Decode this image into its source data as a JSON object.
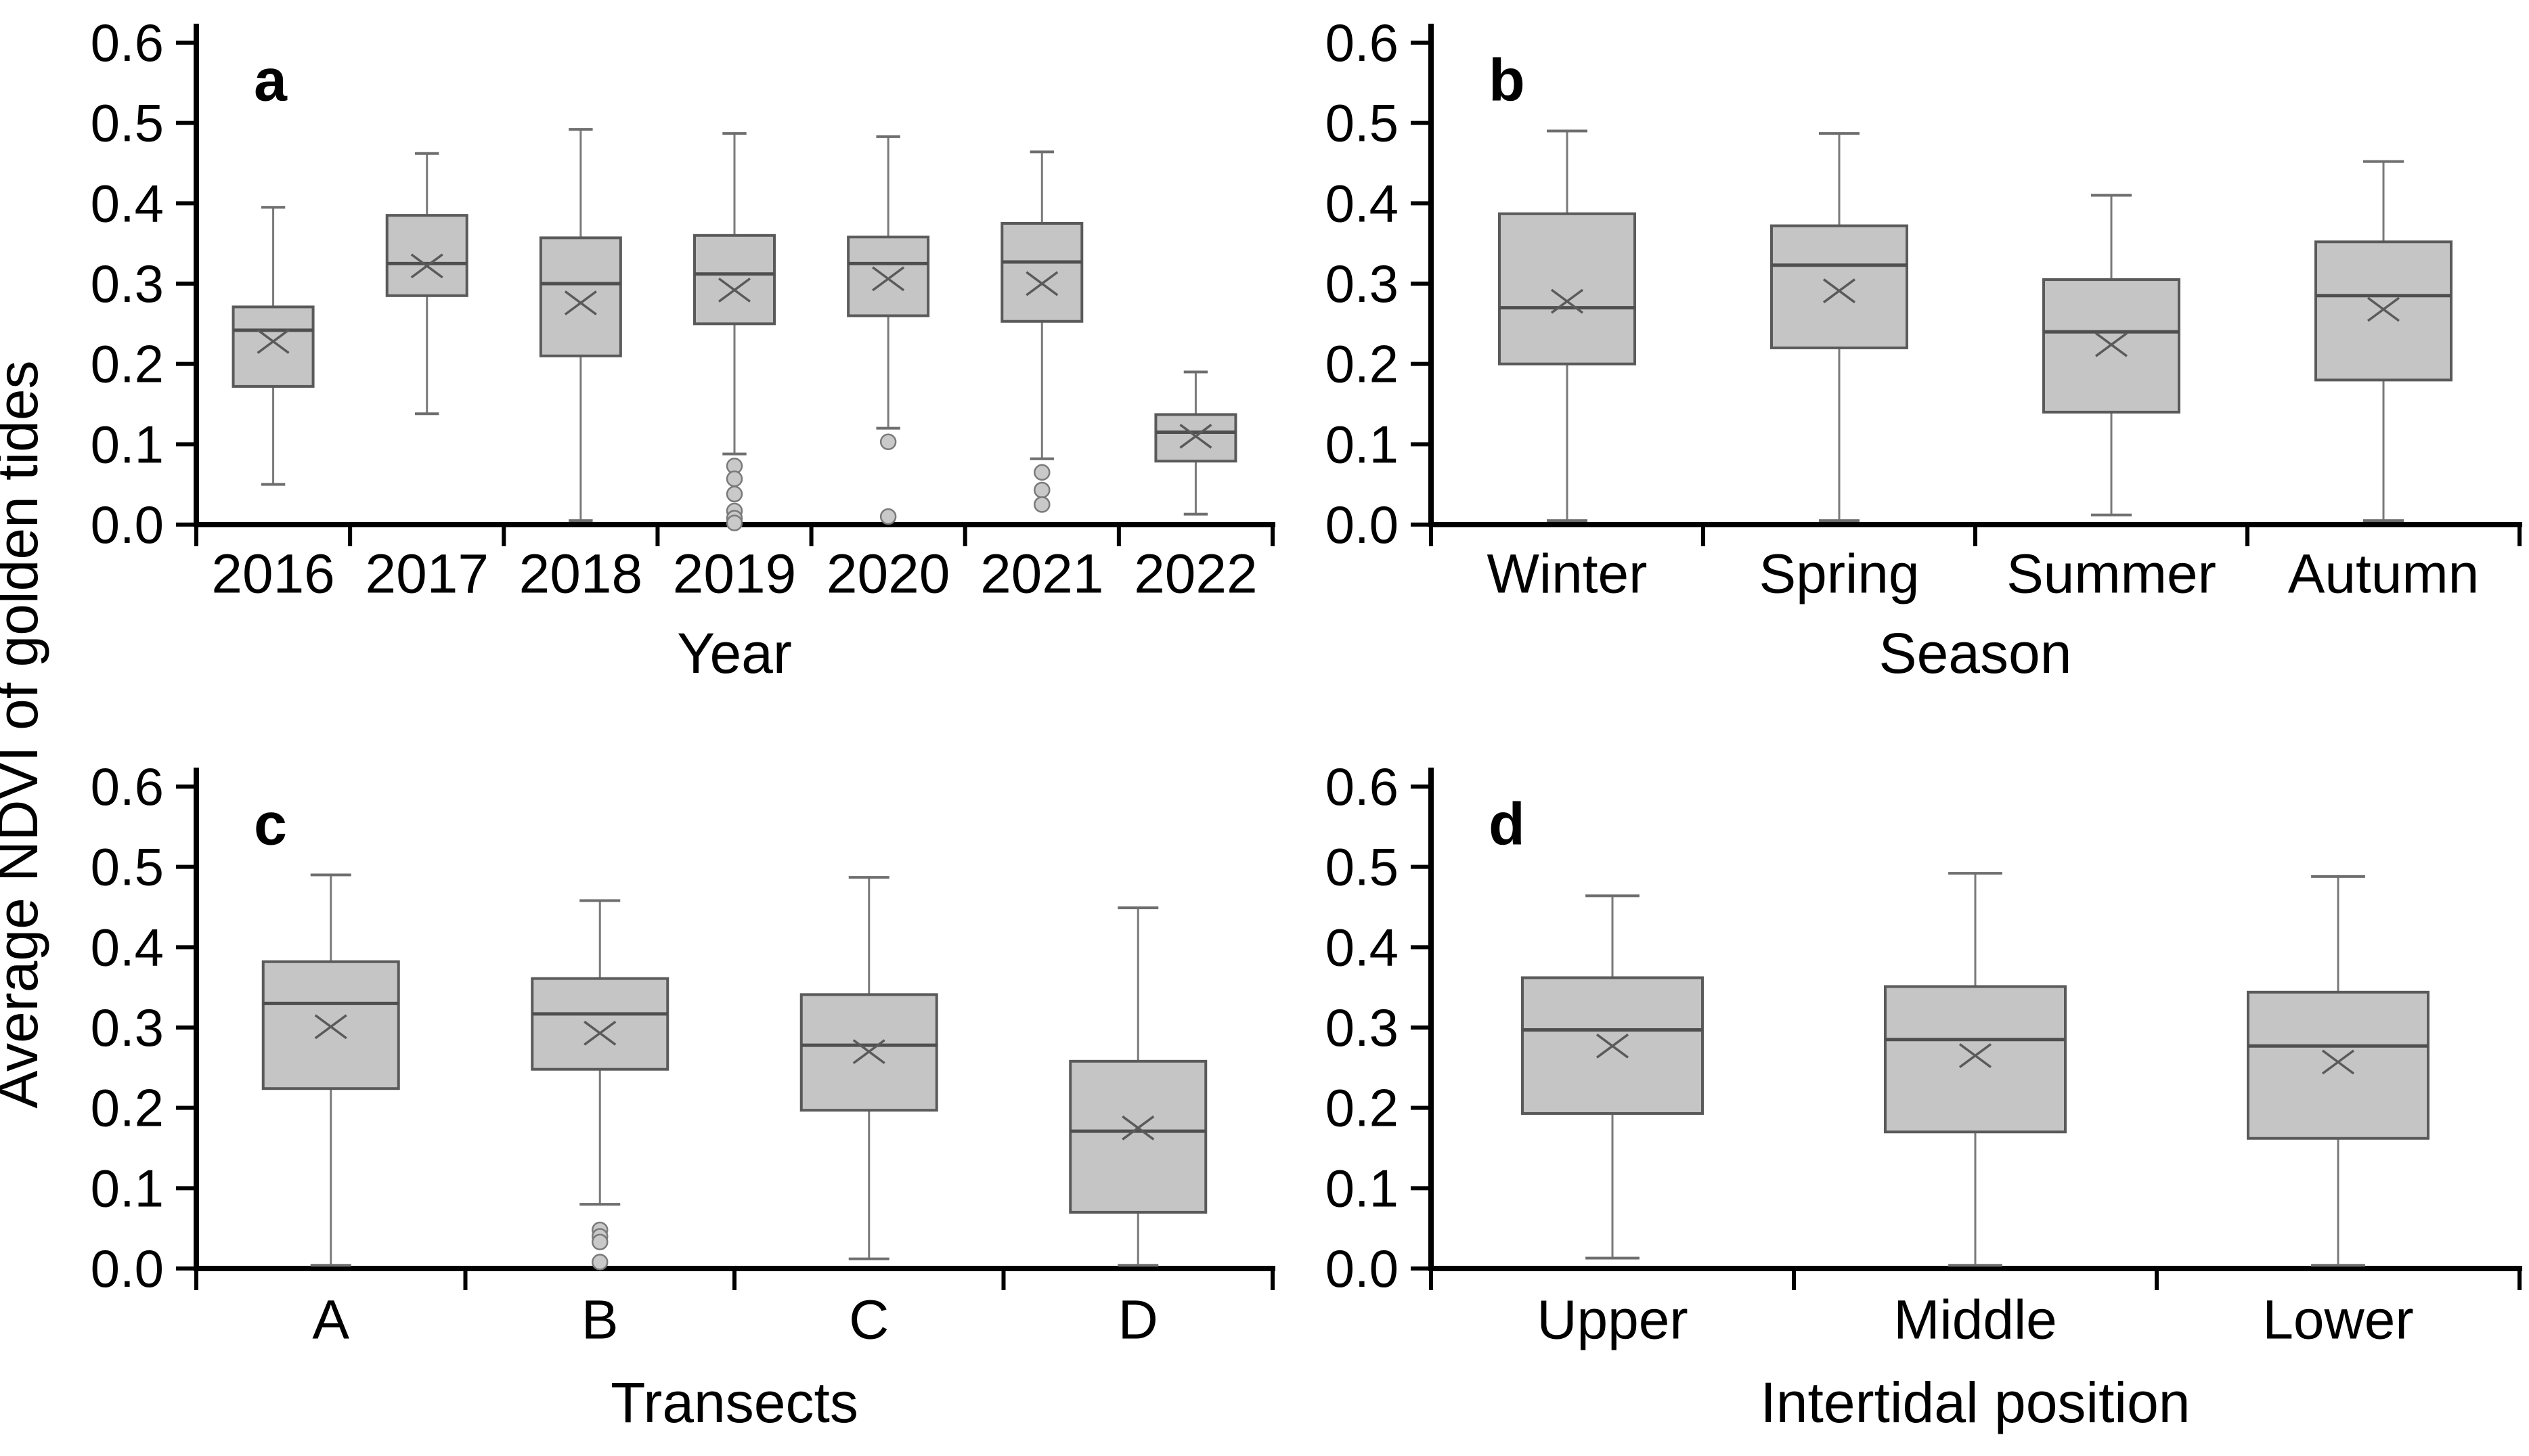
{
  "figure": {
    "ylabel": "Average NDVI of golden tides",
    "y_ticks": [
      "0.0",
      "0.1",
      "0.2",
      "0.3",
      "0.4",
      "0.5",
      "0.6"
    ],
    "ymin": 0.0,
    "ymax": 0.6
  },
  "colors": {
    "box_fill": "#c5c5c5",
    "box_border": "#5a5a5a",
    "median_line": "#4f4f4f",
    "whisker": "#7a7a7a",
    "cap": "#6e6e6e",
    "mean_marker": "#5a5a5a",
    "outlier_fill": "#c9c9c9",
    "outlier_border": "#7a7a7a",
    "axis": "#000000",
    "text": "#000000"
  },
  "chart_data": [
    {
      "type": "box",
      "panel_label": "a",
      "xlabel": "Year",
      "ylabel": "Average NDVI of golden tides",
      "ylim": [
        0.0,
        0.6
      ],
      "categories": [
        "2016",
        "2017",
        "2018",
        "2019",
        "2020",
        "2021",
        "2022"
      ],
      "boxes": [
        {
          "category": "2016",
          "whisker_low": 0.05,
          "q1": 0.172,
          "median": 0.242,
          "q3": 0.271,
          "whisker_high": 0.395,
          "mean": 0.228,
          "outliers": []
        },
        {
          "category": "2017",
          "whisker_low": 0.138,
          "q1": 0.285,
          "median": 0.325,
          "q3": 0.385,
          "whisker_high": 0.462,
          "mean": 0.322,
          "outliers": []
        },
        {
          "category": "2018",
          "whisker_low": 0.005,
          "q1": 0.21,
          "median": 0.3,
          "q3": 0.357,
          "whisker_high": 0.492,
          "mean": 0.276,
          "outliers": []
        },
        {
          "category": "2019",
          "whisker_low": 0.088,
          "q1": 0.25,
          "median": 0.312,
          "q3": 0.36,
          "whisker_high": 0.487,
          "mean": 0.292,
          "outliers": [
            0.073,
            0.057,
            0.038,
            0.017,
            0.008,
            0.002
          ]
        },
        {
          "category": "2020",
          "whisker_low": 0.12,
          "q1": 0.26,
          "median": 0.325,
          "q3": 0.358,
          "whisker_high": 0.483,
          "mean": 0.306,
          "outliers": [
            0.103,
            0.01
          ]
        },
        {
          "category": "2021",
          "whisker_low": 0.082,
          "q1": 0.253,
          "median": 0.327,
          "q3": 0.375,
          "whisker_high": 0.464,
          "mean": 0.3,
          "outliers": [
            0.065,
            0.043,
            0.025
          ]
        },
        {
          "category": "2022",
          "whisker_low": 0.013,
          "q1": 0.079,
          "median": 0.115,
          "q3": 0.137,
          "whisker_high": 0.19,
          "mean": 0.11,
          "outliers": []
        }
      ]
    },
    {
      "type": "box",
      "panel_label": "b",
      "xlabel": "Season",
      "ylabel": "Average NDVI of golden tides",
      "ylim": [
        0.0,
        0.6
      ],
      "categories": [
        "Winter",
        "Spring",
        "Summer",
        "Autumn"
      ],
      "boxes": [
        {
          "category": "Winter",
          "whisker_low": 0.005,
          "q1": 0.2,
          "median": 0.27,
          "q3": 0.387,
          "whisker_high": 0.49,
          "mean": 0.278,
          "outliers": []
        },
        {
          "category": "Spring",
          "whisker_low": 0.005,
          "q1": 0.22,
          "median": 0.323,
          "q3": 0.372,
          "whisker_high": 0.487,
          "mean": 0.291,
          "outliers": []
        },
        {
          "category": "Summer",
          "whisker_low": 0.012,
          "q1": 0.14,
          "median": 0.24,
          "q3": 0.305,
          "whisker_high": 0.41,
          "mean": 0.224,
          "outliers": []
        },
        {
          "category": "Autumn",
          "whisker_low": 0.005,
          "q1": 0.18,
          "median": 0.285,
          "q3": 0.352,
          "whisker_high": 0.452,
          "mean": 0.268,
          "outliers": []
        }
      ]
    },
    {
      "type": "box",
      "panel_label": "c",
      "xlabel": "Transects",
      "ylabel": "Average NDVI of golden tides",
      "ylim": [
        0.0,
        0.6
      ],
      "categories": [
        "A",
        "B",
        "C",
        "D"
      ],
      "boxes": [
        {
          "category": "A",
          "whisker_low": 0.004,
          "q1": 0.224,
          "median": 0.33,
          "q3": 0.382,
          "whisker_high": 0.49,
          "mean": 0.301,
          "outliers": []
        },
        {
          "category": "B",
          "whisker_low": 0.08,
          "q1": 0.248,
          "median": 0.317,
          "q3": 0.361,
          "whisker_high": 0.458,
          "mean": 0.293,
          "outliers": [
            0.048,
            0.04,
            0.033,
            0.008
          ]
        },
        {
          "category": "C",
          "whisker_low": 0.012,
          "q1": 0.197,
          "median": 0.278,
          "q3": 0.341,
          "whisker_high": 0.487,
          "mean": 0.27,
          "outliers": []
        },
        {
          "category": "D",
          "whisker_low": 0.004,
          "q1": 0.07,
          "median": 0.171,
          "q3": 0.258,
          "whisker_high": 0.449,
          "mean": 0.175,
          "outliers": []
        }
      ]
    },
    {
      "type": "box",
      "panel_label": "d",
      "xlabel": "Intertidal position",
      "ylabel": "Average NDVI of golden tides",
      "ylim": [
        0.0,
        0.6
      ],
      "categories": [
        "Upper",
        "Middle",
        "Lower"
      ],
      "boxes": [
        {
          "category": "Upper",
          "whisker_low": 0.013,
          "q1": 0.193,
          "median": 0.297,
          "q3": 0.362,
          "whisker_high": 0.464,
          "mean": 0.277,
          "outliers": []
        },
        {
          "category": "Middle",
          "whisker_low": 0.004,
          "q1": 0.17,
          "median": 0.285,
          "q3": 0.351,
          "whisker_high": 0.492,
          "mean": 0.265,
          "outliers": []
        },
        {
          "category": "Lower",
          "whisker_low": 0.004,
          "q1": 0.162,
          "median": 0.277,
          "q3": 0.344,
          "whisker_high": 0.488,
          "mean": 0.257,
          "outliers": []
        }
      ]
    }
  ]
}
